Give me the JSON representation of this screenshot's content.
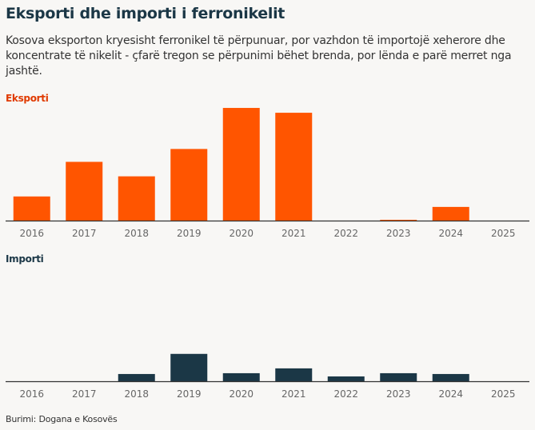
{
  "title": "Eksporti dhe importi i ferronikelit",
  "subtitle": "Kosova eksporton kryesisht ferronikel të përpunuar, por vazhdon të importojë xeherore dhe koncentrate të nikelit - çfarë tregon se përpunimi bëhet brenda, por lënda e parë merret nga jashtë.",
  "source": "Burimi: Dogana e Kosovës",
  "chart_data": [
    {
      "type": "bar",
      "title": "Eksporti",
      "color": "#ff5500",
      "categories": [
        "2016",
        "2017",
        "2018",
        "2019",
        "2020",
        "2021",
        "2022",
        "2023",
        "2024",
        "2025"
      ],
      "values": [
        30,
        73,
        55,
        89,
        140,
        134,
        0,
        1,
        17,
        0
      ],
      "ylim": [
        0,
        145
      ],
      "grid": false,
      "note": "relative values, no axis shown"
    },
    {
      "type": "bar",
      "title": "Importi",
      "color": "#1b3746",
      "categories": [
        "2016",
        "2017",
        "2018",
        "2019",
        "2020",
        "2021",
        "2022",
        "2023",
        "2024",
        "2025"
      ],
      "values": [
        0,
        0,
        9,
        34,
        10,
        16,
        6,
        10,
        9,
        0
      ],
      "ylim": [
        0,
        145
      ],
      "grid": false
    }
  ]
}
